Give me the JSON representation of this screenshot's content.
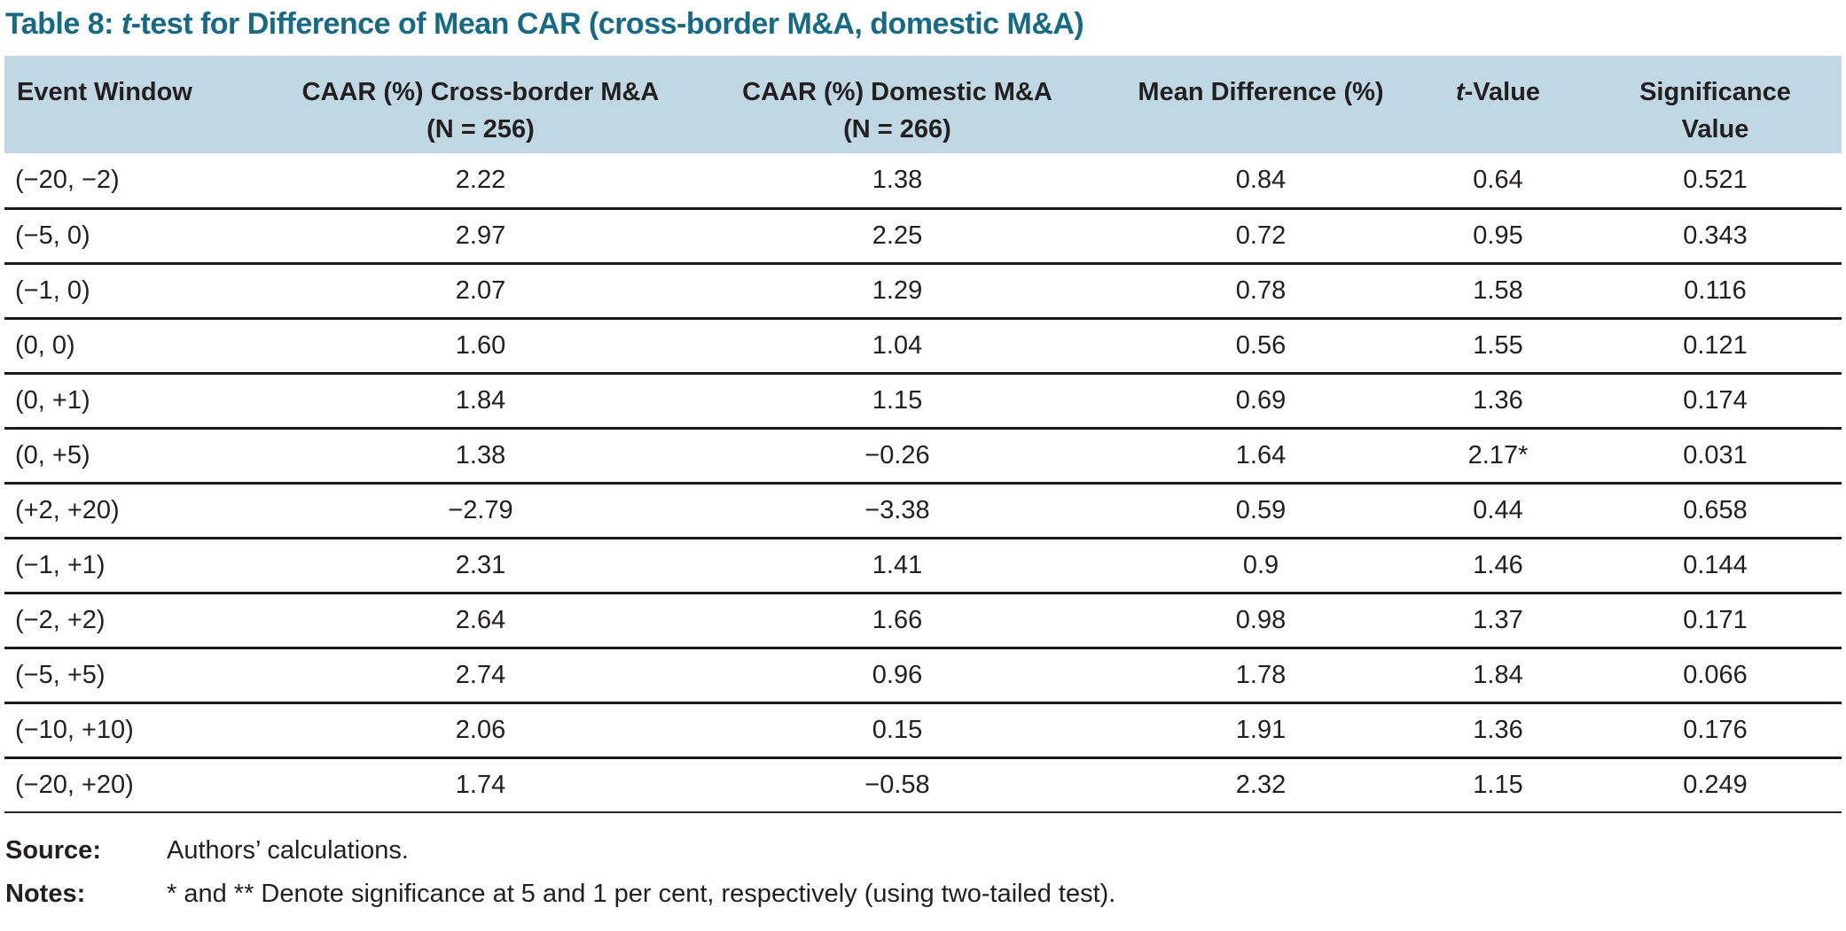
{
  "title": {
    "prefix": "Table 8: ",
    "italic_term": "t",
    "suffix": "-test for Difference of Mean CAR (cross-border M&A, domestic M&A)"
  },
  "table": {
    "headers": {
      "event_window": "Event Window",
      "caar_cross_border_line1": "CAAR (%) Cross-border M&A",
      "caar_cross_border_line2": "(N = 256)",
      "caar_domestic_line1": "CAAR (%) Domestic M&A",
      "caar_domestic_line2": "(N = 266)",
      "mean_difference": "Mean Difference (%)",
      "t_value_italic": "t",
      "t_value_rest": "-Value",
      "significance_line1": "Significance",
      "significance_line2": "Value"
    },
    "rows": [
      {
        "cells": [
          "(−20, −2)",
          "2.22",
          "1.38",
          "0.84",
          "0.64",
          "0.521"
        ]
      },
      {
        "cells": [
          "(−5, 0)",
          "2.97",
          "2.25",
          "0.72",
          "0.95",
          "0.343"
        ]
      },
      {
        "cells": [
          "(−1, 0)",
          "2.07",
          "1.29",
          "0.78",
          "1.58",
          "0.116"
        ]
      },
      {
        "cells": [
          "(0, 0)",
          "1.60",
          "1.04",
          "0.56",
          "1.55",
          "0.121"
        ]
      },
      {
        "cells": [
          "(0, +1)",
          "1.84",
          "1.15",
          "0.69",
          "1.36",
          "0.174"
        ]
      },
      {
        "cells": [
          "(0, +5)",
          "1.38",
          "−0.26",
          "1.64",
          "2.17*",
          "0.031"
        ]
      },
      {
        "cells": [
          "(+2, +20)",
          "−2.79",
          "−3.38",
          "0.59",
          "0.44",
          "0.658"
        ]
      },
      {
        "cells": [
          "(−1, +1)",
          "2.31",
          "1.41",
          "0.9",
          "1.46",
          "0.144"
        ]
      },
      {
        "cells": [
          "(−2, +2)",
          "2.64",
          "1.66",
          "0.98",
          "1.37",
          "0.171"
        ]
      },
      {
        "cells": [
          "(−5, +5)",
          "2.74",
          "0.96",
          "1.78",
          "1.84",
          "0.066"
        ]
      },
      {
        "cells": [
          "(−10, +10)",
          "2.06",
          "0.15",
          "1.91",
          "1.36",
          "0.176"
        ]
      },
      {
        "cells": [
          "(−20, +20)",
          "1.74",
          "−0.58",
          "2.32",
          "1.15",
          "0.249"
        ]
      }
    ]
  },
  "footer": {
    "source_label": "Source:",
    "source_text": "Authors’ calculations.",
    "notes_label": "Notes:",
    "notes_text": "* and ** Denote significance at 5 and 1 per cent, respectively (using two-tailed test)."
  },
  "colors": {
    "title_teal": "#176a85",
    "header_bg": "#bfd8e3",
    "text": "#231f20",
    "row_rule": "#1d1a1b"
  },
  "chart_data": {
    "type": "table",
    "title": "Table 8: t-test for Difference of Mean CAR (cross-border M&A, domestic M&A)",
    "columns": [
      "Event Window",
      "CAAR (%) Cross-border M&A (N = 256)",
      "CAAR (%) Domestic M&A (N = 266)",
      "Mean Difference (%)",
      "t-Value",
      "Significance Value"
    ],
    "rows": [
      [
        "(−20, −2)",
        "2.22",
        "1.38",
        "0.84",
        "0.64",
        "0.521"
      ],
      [
        "(−5, 0)",
        "2.97",
        "2.25",
        "0.72",
        "0.95",
        "0.343"
      ],
      [
        "(−1, 0)",
        "2.07",
        "1.29",
        "0.78",
        "1.58",
        "0.116"
      ],
      [
        "(0, 0)",
        "1.60",
        "1.04",
        "0.56",
        "1.55",
        "0.121"
      ],
      [
        "(0, +1)",
        "1.84",
        "1.15",
        "0.69",
        "1.36",
        "0.174"
      ],
      [
        "(0, +5)",
        "1.38",
        "−0.26",
        "1.64",
        "2.17*",
        "0.031"
      ],
      [
        "(+2, +20)",
        "−2.79",
        "−3.38",
        "0.59",
        "0.44",
        "0.658"
      ],
      [
        "(−1, +1)",
        "2.31",
        "1.41",
        "0.9",
        "1.46",
        "0.144"
      ],
      [
        "(−2, +2)",
        "2.64",
        "1.66",
        "0.98",
        "1.37",
        "0.171"
      ],
      [
        "(−5, +5)",
        "2.74",
        "0.96",
        "1.78",
        "1.84",
        "0.066"
      ],
      [
        "(−10, +10)",
        "2.06",
        "0.15",
        "1.91",
        "1.36",
        "0.176"
      ],
      [
        "(−20, +20)",
        "1.74",
        "−0.58",
        "2.32",
        "1.15",
        "0.249"
      ]
    ],
    "notes": "* and ** Denote significance at 5 and 1 per cent, respectively (using two-tailed test).",
    "source": "Authors’ calculations."
  }
}
